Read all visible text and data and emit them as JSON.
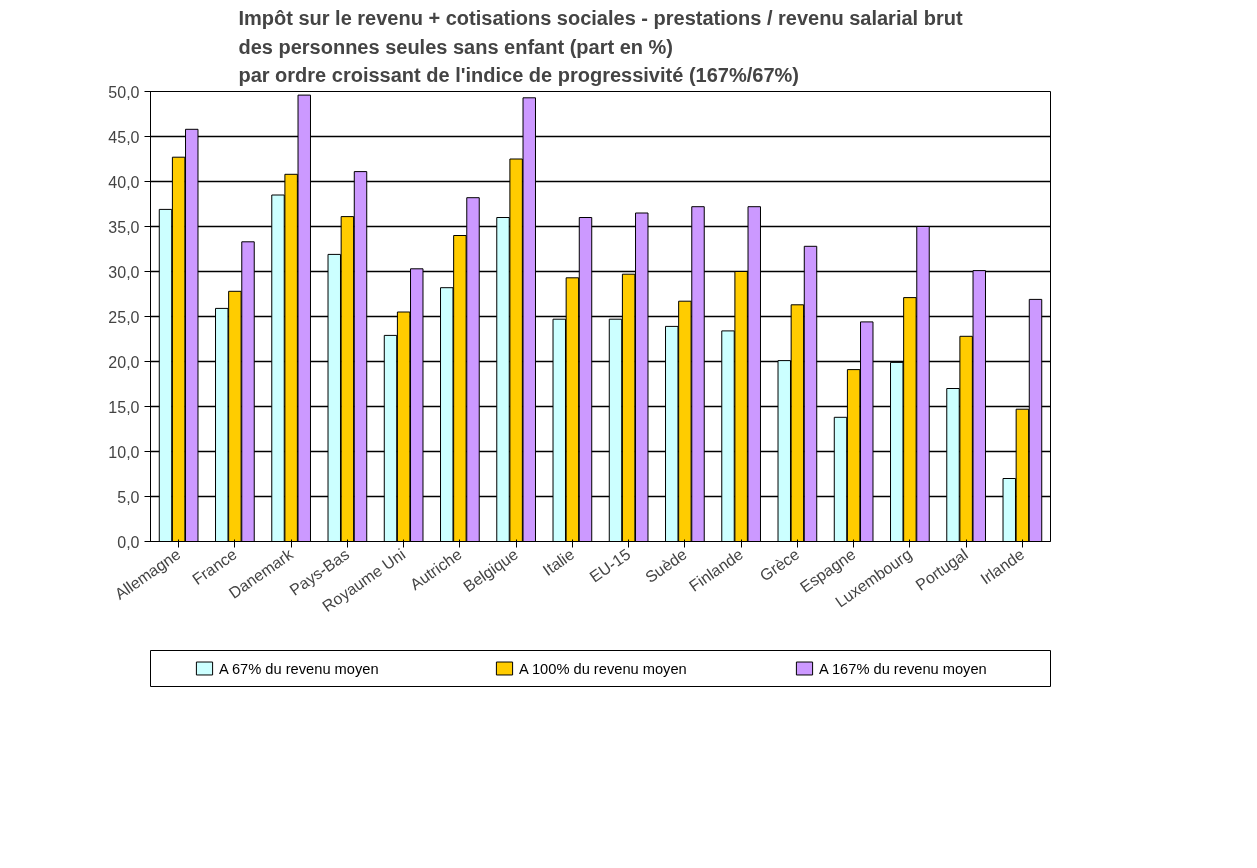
{
  "chart_data": {
    "type": "bar",
    "title": "Impôt sur le revenu + cotisations sociales - prestations / revenu salarial brut\ndes personnes seules sans enfant  (part en %)\npar ordre croissant de l'indice de progressivité (167%/67%)",
    "categories": [
      "Allemagne",
      "France",
      "Danemark",
      "Pays-Bas",
      "Royaume Uni",
      "Autriche",
      "Belgique",
      "Italie",
      "EU-15",
      "Suède",
      "Finlande",
      "Grèce",
      "Espagne",
      "Luxembourg",
      "Portugal",
      "Irlande"
    ],
    "series": [
      {
        "name": "A 67% du revenu moyen",
        "color": "#ccffff",
        "values": [
          36.9,
          25.9,
          38.5,
          31.9,
          22.9,
          28.2,
          36.0,
          24.7,
          24.7,
          23.9,
          23.4,
          20.1,
          13.8,
          19.9,
          17.0,
          7.0
        ]
      },
      {
        "name": "A 100% du revenu moyen",
        "color": "#ffcc00",
        "values": [
          42.7,
          27.8,
          40.8,
          36.1,
          25.5,
          34.0,
          42.5,
          29.3,
          29.7,
          26.7,
          30.0,
          26.3,
          19.1,
          27.1,
          22.8,
          14.7
        ]
      },
      {
        "name": "A 167% du revenu moyen",
        "color": "#cc99ff",
        "values": [
          45.8,
          33.3,
          49.6,
          41.1,
          30.3,
          38.2,
          49.3,
          36.0,
          36.5,
          37.2,
          37.2,
          32.8,
          24.4,
          35.0,
          30.1,
          26.9
        ]
      }
    ],
    "ylim": [
      0,
      50
    ],
    "yticks": [
      {
        "value": 0,
        "label": "0,0"
      },
      {
        "value": 5,
        "label": "5,0"
      },
      {
        "value": 10,
        "label": "10,0"
      },
      {
        "value": 15,
        "label": "15,0"
      },
      {
        "value": 20,
        "label": "20,0"
      },
      {
        "value": 25,
        "label": "25,0"
      },
      {
        "value": 30,
        "label": "30,0"
      },
      {
        "value": 35,
        "label": "35,0"
      },
      {
        "value": 40,
        "label": "40,0"
      },
      {
        "value": 45,
        "label": "45,0"
      },
      {
        "value": 50,
        "label": "50,0"
      }
    ],
    "grid": "y",
    "legend": "bottom"
  }
}
